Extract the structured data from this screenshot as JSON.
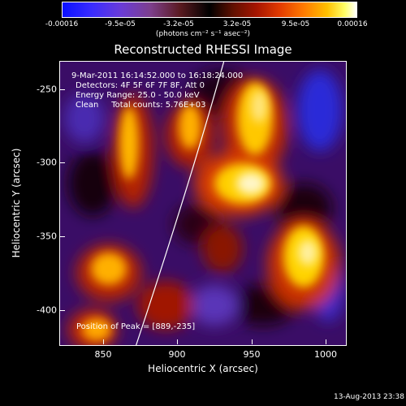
{
  "colorbar": {
    "ticks": [
      "-0.00016",
      "-9.5e-05",
      "-3.2e-05",
      "3.2e-05",
      "9.5e-05",
      "0.00016"
    ],
    "unit": "(photons cm⁻² s⁻¹ asec⁻²)"
  },
  "plot": {
    "title": "Reconstructed RHESSI Image",
    "time_range": "9-Mar-2011 16:14:52.000 to 16:18:24.000",
    "detectors": "Detectors: 4F 5F 6F 7F 8F, Att 0",
    "energy_range": "Energy Range: 25.0 - 50.0 keV",
    "method": "Clean     Total counts: 5.76E+03",
    "peak": "Position of Peak = [889,-235]",
    "x_axis": {
      "label": "Heliocentric X (arcsec)",
      "ticks": [
        "850",
        "900",
        "950",
        "1000"
      ]
    },
    "y_axis": {
      "label": "Heliocentric Y (arcsec)",
      "ticks": [
        "-250",
        "-300",
        "-350",
        "-400"
      ]
    }
  },
  "footer": {
    "date": "13-Aug-2013 23:38"
  },
  "colors": {
    "background": "#000000",
    "map_base": "#3a0d66",
    "limb_line": "#ffffff"
  }
}
